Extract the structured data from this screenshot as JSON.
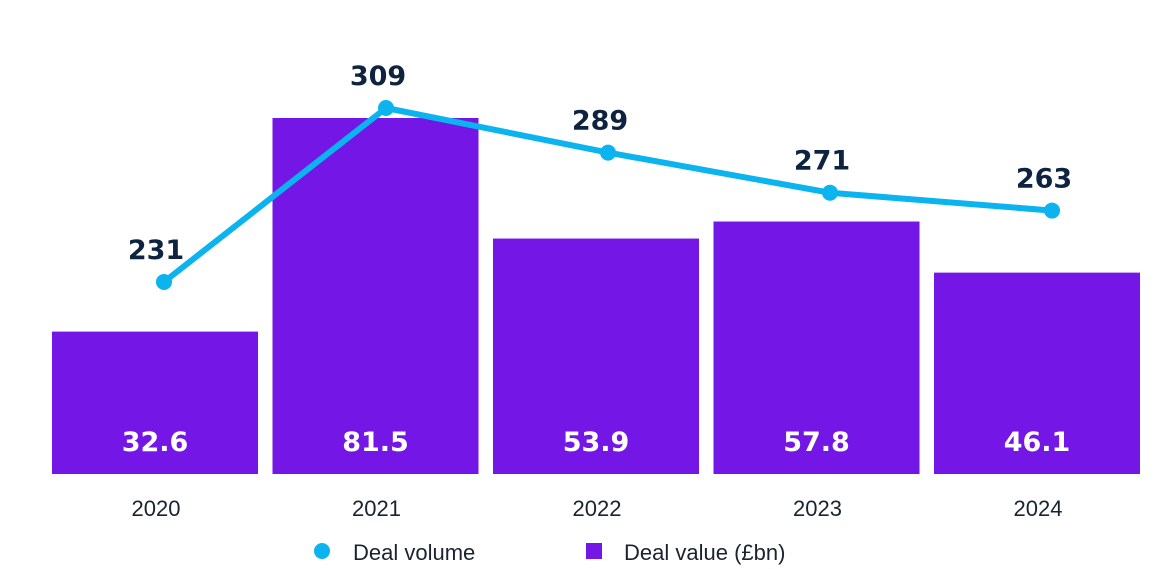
{
  "chart_data": {
    "type": "bar",
    "title": "",
    "xlabel": "",
    "ylabel": "",
    "categories": [
      "2020",
      "2021",
      "2022",
      "2023",
      "2024"
    ],
    "series": [
      {
        "name": "Deal value (£bn)",
        "type": "bar",
        "color": "#7316e6",
        "values": [
          32.6,
          81.5,
          53.9,
          57.8,
          46.1
        ],
        "labels": [
          "32.6",
          "81.5",
          "53.9",
          "57.8",
          "46.1"
        ]
      },
      {
        "name": "Deal volume",
        "type": "line",
        "color": "#0bb4ee",
        "values": [
          231,
          309,
          289,
          271,
          263
        ],
        "labels": [
          "231",
          "309",
          "289",
          "271",
          "263"
        ]
      }
    ],
    "grid": false,
    "legend": {
      "position": "bottom",
      "entries": [
        {
          "label": "Deal volume",
          "marker": "circle",
          "color": "#0bb4ee"
        },
        {
          "label": "Deal value (£bn)",
          "marker": "square",
          "color": "#7316e6"
        }
      ]
    }
  }
}
